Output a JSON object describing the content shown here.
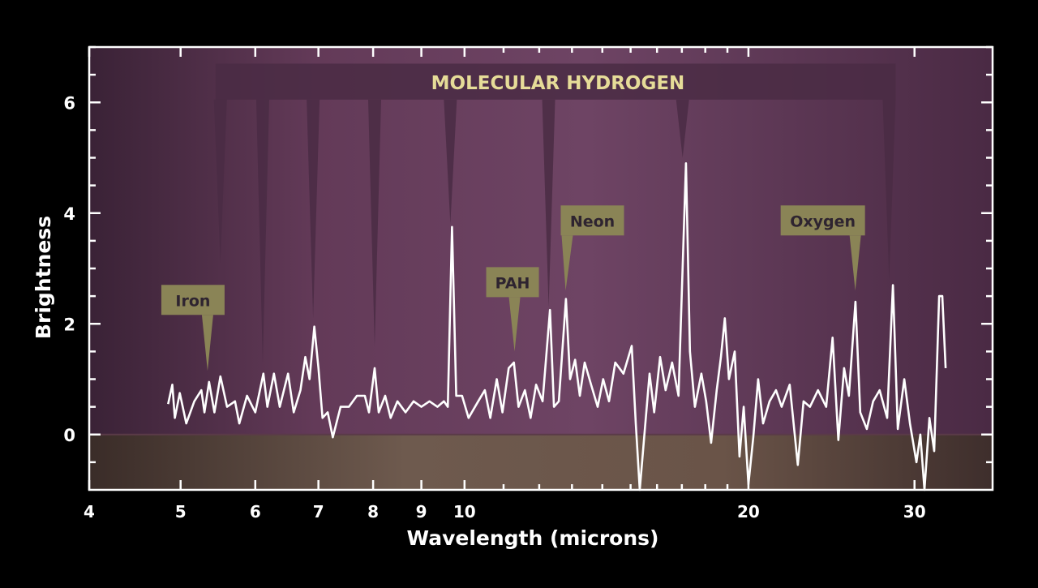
{
  "chart_data": {
    "type": "line",
    "title": "",
    "xlabel": "Wavelength (microns)",
    "ylabel": "Brightness",
    "xscale": "log",
    "xlim": [
      4,
      36.3
    ],
    "ylim": [
      -1,
      7
    ],
    "xticks": [
      4,
      5,
      6,
      7,
      8,
      9,
      10,
      20,
      30
    ],
    "yticks": [
      0,
      2,
      4,
      6
    ],
    "grid": false,
    "colors": {
      "line": "#ffffff",
      "background": "#6a3f5e",
      "below_zero": "#6e5a4e",
      "label_box": "#8a8456",
      "label_text": "#2e2430",
      "h2_text": "#e6dc98",
      "h2_band": "#4a2c44"
    },
    "band_label": "MOLECULAR HYDROGEN",
    "h2_lines": [
      5.51,
      6.11,
      6.91,
      8.03,
      9.66,
      12.28,
      17.03,
      28.2
    ],
    "annotations": [
      {
        "text": "Iron",
        "x": 5.34,
        "y": 1.15
      },
      {
        "text": "PAH",
        "x": 11.3,
        "y": 1.5
      },
      {
        "text": "Neon",
        "x": 12.8,
        "y": 2.6
      },
      {
        "text": "Oxygen",
        "x": 25.96,
        "y": 2.6
      }
    ],
    "series": [
      {
        "x": [
          4.85,
          4.9,
          4.93,
          4.99,
          5.07,
          5.17,
          5.26,
          5.3,
          5.36,
          5.43,
          5.51,
          5.6,
          5.71,
          5.77,
          5.88,
          6.0,
          6.12,
          6.18,
          6.28,
          6.37,
          6.5,
          6.59,
          6.7,
          6.78,
          6.85,
          6.93,
          7.0,
          7.07,
          7.16,
          7.25,
          7.39,
          7.54,
          7.69,
          7.84,
          7.92,
          8.03,
          8.11,
          8.24,
          8.35,
          8.49,
          8.66,
          8.83,
          9.0,
          9.18,
          9.36,
          9.51,
          9.6,
          9.7,
          9.8,
          9.94,
          10.1,
          10.34,
          10.51,
          10.65,
          10.82,
          10.97,
          11.14,
          11.28,
          11.41,
          11.59,
          11.75,
          11.91,
          12.1,
          12.32,
          12.44,
          12.59,
          12.81,
          12.94,
          13.1,
          13.25,
          13.41,
          13.62,
          13.84,
          14.03,
          14.23,
          14.45,
          14.74,
          15.04,
          15.19,
          15.34,
          15.55,
          15.71,
          15.89,
          16.12,
          16.34,
          16.6,
          16.86,
          17.17,
          17.34,
          17.55,
          17.83,
          18.04,
          18.26,
          18.51,
          18.7,
          18.88,
          19.07,
          19.34,
          19.57,
          19.77,
          20.0,
          20.24,
          20.48,
          20.73,
          21.06,
          21.39,
          21.69,
          22.12,
          22.56,
          22.88,
          23.24,
          23.7,
          24.18,
          24.56,
          24.91,
          25.26,
          25.56,
          25.97,
          26.28,
          26.7,
          27.12,
          27.55,
          28.06,
          28.46,
          28.8,
          29.26,
          29.67,
          30.14,
          30.43,
          30.74,
          31.11,
          31.48,
          31.86,
          32.11,
          32.37
        ],
        "y": [
          0.55,
          0.9,
          0.3,
          0.75,
          0.2,
          0.6,
          0.8,
          0.4,
          0.95,
          0.4,
          1.05,
          0.5,
          0.6,
          0.2,
          0.7,
          0.4,
          1.1,
          0.5,
          1.1,
          0.5,
          1.1,
          0.4,
          0.8,
          1.4,
          1.0,
          1.95,
          1.2,
          0.3,
          0.4,
          -0.05,
          0.5,
          0.5,
          0.7,
          0.7,
          0.4,
          1.2,
          0.4,
          0.7,
          0.3,
          0.6,
          0.4,
          0.6,
          0.5,
          0.6,
          0.5,
          0.6,
          0.5,
          3.75,
          0.7,
          0.7,
          0.3,
          0.6,
          0.8,
          0.3,
          1.0,
          0.4,
          1.2,
          1.3,
          0.5,
          0.8,
          0.3,
          0.9,
          0.6,
          2.25,
          0.5,
          0.6,
          2.45,
          1.0,
          1.35,
          0.7,
          1.3,
          0.9,
          0.5,
          1.0,
          0.6,
          1.3,
          1.1,
          1.6,
          0.2,
          -1.0,
          0.2,
          1.1,
          0.4,
          1.4,
          0.8,
          1.3,
          0.7,
          4.9,
          1.5,
          0.5,
          1.1,
          0.6,
          -0.15,
          0.8,
          1.4,
          2.1,
          1.0,
          1.5,
          -0.4,
          0.5,
          -0.9,
          -0.05,
          1.0,
          0.2,
          0.6,
          0.8,
          0.5,
          0.9,
          -0.55,
          0.6,
          0.5,
          0.8,
          0.5,
          1.75,
          -0.1,
          1.2,
          0.7,
          2.4,
          0.4,
          0.1,
          0.6,
          0.8,
          0.3,
          2.7,
          0.1,
          1.0,
          0.2,
          -0.5,
          0.0,
          -1.0,
          0.3,
          -0.3,
          2.5,
          2.5,
          1.2
        ]
      }
    ]
  }
}
